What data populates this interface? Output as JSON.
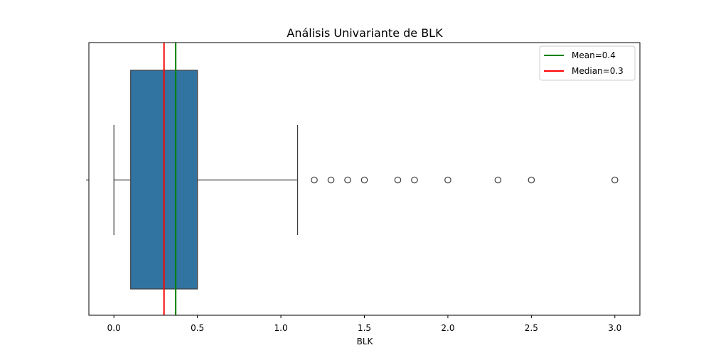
{
  "chart_data": {
    "type": "box",
    "title": "Análisis Univariante de BLK",
    "xlabel": "BLK",
    "ylabel": "",
    "xlim": [
      -0.15,
      3.15
    ],
    "xticks": [
      0.0,
      0.5,
      1.0,
      1.5,
      2.0,
      2.5,
      3.0
    ],
    "xtick_labels": [
      "0.0",
      "0.5",
      "1.0",
      "1.5",
      "2.0",
      "2.5",
      "3.0"
    ],
    "box": {
      "whisker_low": 0.0,
      "q1": 0.1,
      "median": 0.3,
      "q3": 0.5,
      "whisker_high": 1.1,
      "color": "#3274a1"
    },
    "outliers": [
      1.2,
      1.3,
      1.4,
      1.5,
      1.7,
      1.8,
      2.0,
      2.3,
      2.5,
      3.0
    ],
    "lines": [
      {
        "name": "Mean=0.4",
        "value": 0.37,
        "color": "#008000"
      },
      {
        "name": "Median=0.3",
        "value": 0.3,
        "color": "#ff0000"
      }
    ],
    "legend_position": "top-right",
    "grid": false
  }
}
